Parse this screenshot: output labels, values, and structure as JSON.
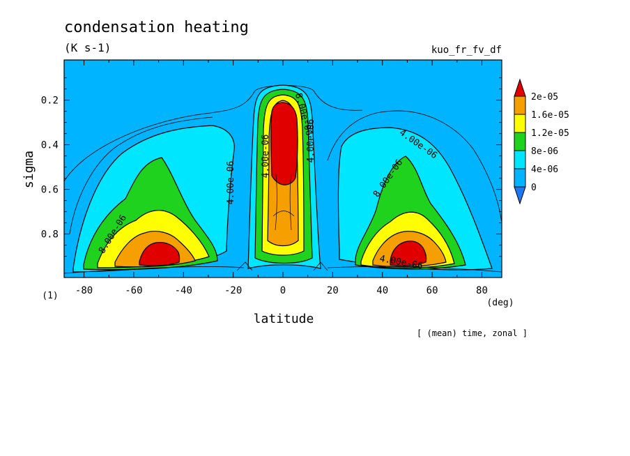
{
  "chart_data": {
    "type": "contour",
    "title": "condensation heating",
    "units": "(K s-1)",
    "experiment": "kuo_fr_fv_df",
    "xlabel": "latitude",
    "ylabel": "sigma",
    "x_unit": "(deg)",
    "y_unit": "(1)",
    "footnote": "[ (mean) time, zonal ]",
    "xlim": [
      -88,
      88
    ],
    "ylim": [
      0.995,
      0.02
    ],
    "x_ticks": [
      "-80",
      "-60",
      "-40",
      "-20",
      "0",
      "20",
      "40",
      "60",
      "80"
    ],
    "y_ticks": [
      "0.2",
      "0.4",
      "0.6",
      "0.8"
    ],
    "legend": {
      "labels": [
        "2e-05",
        "1.6e-05",
        "1.2e-05",
        "8e-06",
        "4e-06",
        "0"
      ],
      "colors": [
        "#1e78f0",
        "#00b4ff",
        "#00e6ff",
        "#1ed21e",
        "#ffff00",
        "#f5a000",
        "#e00000"
      ]
    },
    "contour_labels": [
      "8.00e-06",
      "4.00e-06",
      "4.00e-06",
      "4.00e-06",
      "8.00e-06",
      "4.00e-06",
      "8.00e-06",
      "4.00e-06"
    ],
    "maxima": [
      {
        "name": "southern midlatitude",
        "lat": -50,
        "sigma": 0.88,
        "value": 2.2e-05
      },
      {
        "name": "equatorial",
        "lat": 0,
        "sigma": 0.35,
        "value": 3e-05
      },
      {
        "name": "northern midlatitude",
        "lat": 50,
        "sigma": 0.88,
        "value": 2.2e-05
      }
    ]
  }
}
